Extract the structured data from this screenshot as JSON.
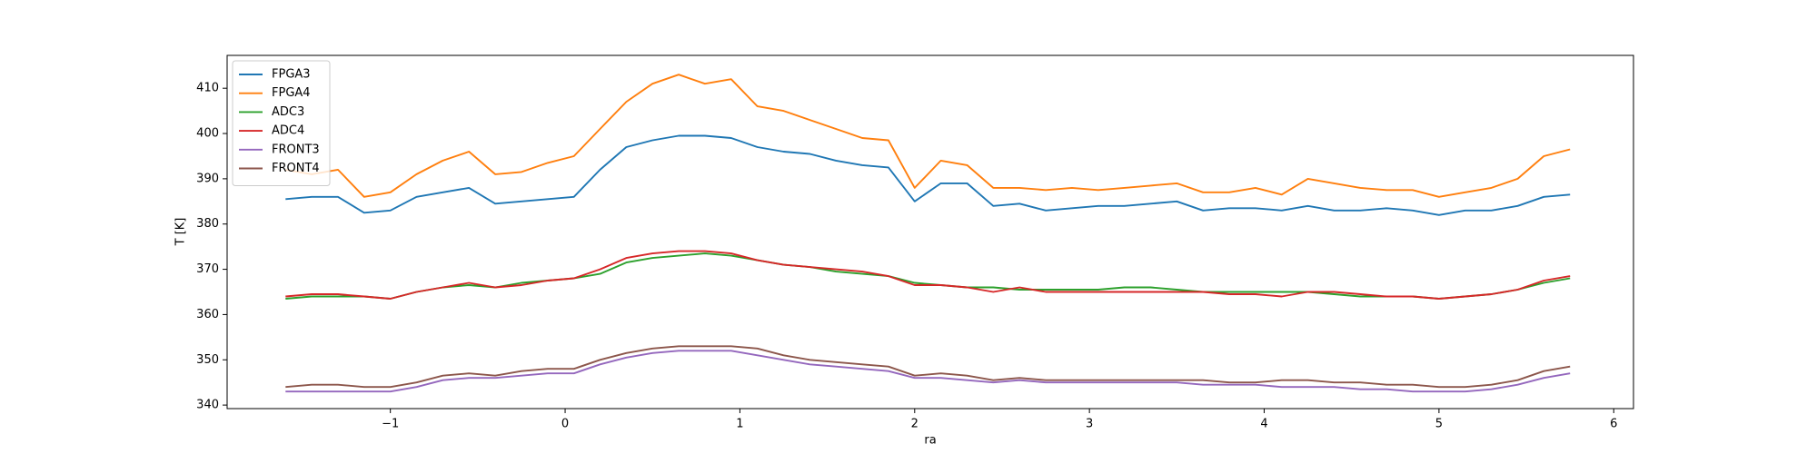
{
  "chart_data": {
    "type": "line",
    "xlabel": "ra",
    "ylabel": "T [K]",
    "x": [
      -1.6,
      -1.45,
      -1.3,
      -1.15,
      -1.0,
      -0.85,
      -0.7,
      -0.55,
      -0.4,
      -0.25,
      -0.1,
      0.05,
      0.2,
      0.35,
      0.5,
      0.65,
      0.8,
      0.95,
      1.1,
      1.25,
      1.4,
      1.55,
      1.7,
      1.85,
      2.0,
      2.15,
      2.3,
      2.45,
      2.6,
      2.75,
      2.9,
      3.05,
      3.2,
      3.35,
      3.5,
      3.65,
      3.8,
      3.95,
      4.1,
      4.25,
      4.4,
      4.55,
      4.7,
      4.85,
      5.0,
      5.15,
      5.3,
      5.45,
      5.6,
      5.75
    ],
    "series": [
      {
        "name": "FPGA3",
        "color": "#1f77b4",
        "values": [
          385.5,
          386,
          386,
          382.5,
          383,
          386,
          387,
          388,
          384.5,
          385,
          385.5,
          386,
          392,
          397,
          398.5,
          399.5,
          399.5,
          399,
          397,
          396,
          395.5,
          394,
          393,
          392.5,
          385,
          389,
          389,
          384,
          384.5,
          383,
          383.5,
          384,
          384,
          384.5,
          385,
          383,
          383.5,
          383.5,
          383,
          384,
          383,
          383,
          383.5,
          383,
          382,
          383,
          383,
          384,
          386,
          386.5
        ]
      },
      {
        "name": "FPGA4",
        "color": "#ff7f0e",
        "values": [
          392,
          391,
          392,
          386,
          387,
          391,
          394,
          396,
          391,
          391.5,
          393.5,
          395,
          401,
          407,
          411,
          413,
          411,
          412,
          406,
          405,
          403,
          401,
          399,
          398.5,
          388,
          394,
          393,
          388,
          388,
          387.5,
          388,
          387.5,
          388,
          388.5,
          389,
          387,
          387,
          388,
          386.5,
          390,
          389,
          388,
          387.5,
          387.5,
          386,
          387,
          388,
          390,
          395,
          396.5
        ]
      },
      {
        "name": "ADC3",
        "color": "#2ca02c",
        "values": [
          363.5,
          364,
          364,
          364,
          363.5,
          365,
          366,
          366.5,
          366,
          367,
          367.5,
          368,
          369,
          371.5,
          372.5,
          373,
          373.5,
          373,
          372,
          371,
          370.5,
          369.5,
          369,
          368.5,
          367,
          366.5,
          366,
          366,
          365.5,
          365.5,
          365.5,
          365.5,
          366,
          366,
          365.5,
          365,
          365,
          365,
          365,
          365,
          364.5,
          364,
          364,
          364,
          363.5,
          364,
          364.5,
          365.5,
          367,
          368
        ]
      },
      {
        "name": "ADC4",
        "color": "#d62728",
        "values": [
          364,
          364.5,
          364.5,
          364,
          363.5,
          365,
          366,
          367,
          366,
          366.5,
          367.5,
          368,
          370,
          372.5,
          373.5,
          374,
          374,
          373.5,
          372,
          371,
          370.5,
          370,
          369.5,
          368.5,
          366.5,
          366.5,
          366,
          365,
          366,
          365,
          365,
          365,
          365,
          365,
          365,
          365,
          364.5,
          364.5,
          364,
          365,
          365,
          364.5,
          364,
          364,
          363.5,
          364,
          364.5,
          365.5,
          367.5,
          368.5
        ]
      },
      {
        "name": "FRONT3",
        "color": "#9467bd",
        "values": [
          343,
          343,
          343,
          343,
          343,
          344,
          345.5,
          346,
          346,
          346.5,
          347,
          347,
          349,
          350.5,
          351.5,
          352,
          352,
          352,
          351,
          350,
          349,
          348.5,
          348,
          347.5,
          346,
          346,
          345.5,
          345,
          345.5,
          345,
          345,
          345,
          345,
          345,
          345,
          344.5,
          344.5,
          344.5,
          344,
          344,
          344,
          343.5,
          343.5,
          343,
          343,
          343,
          343.5,
          344.5,
          346,
          347
        ]
      },
      {
        "name": "FRONT4",
        "color": "#8c564b",
        "values": [
          344,
          344.5,
          344.5,
          344,
          344,
          345,
          346.5,
          347,
          346.5,
          347.5,
          348,
          348,
          350,
          351.5,
          352.5,
          353,
          353,
          353,
          352.5,
          351,
          350,
          349.5,
          349,
          348.5,
          346.5,
          347,
          346.5,
          345.5,
          346,
          345.5,
          345.5,
          345.5,
          345.5,
          345.5,
          345.5,
          345.5,
          345,
          345,
          345.5,
          345.5,
          345,
          345,
          344.5,
          344.5,
          344,
          344,
          344.5,
          345.5,
          347.5,
          348.5
        ]
      }
    ],
    "xlim": [
      -1.934,
      6.113
    ],
    "ylim": [
      339.22,
      417.26
    ],
    "xticks": [
      {
        "value": -1,
        "label": "−1"
      },
      0,
      1,
      2,
      3,
      4,
      5,
      6
    ],
    "yticks": [
      340,
      350,
      360,
      370,
      380,
      390,
      400,
      410
    ],
    "legend": "upper left",
    "grid": false
  }
}
